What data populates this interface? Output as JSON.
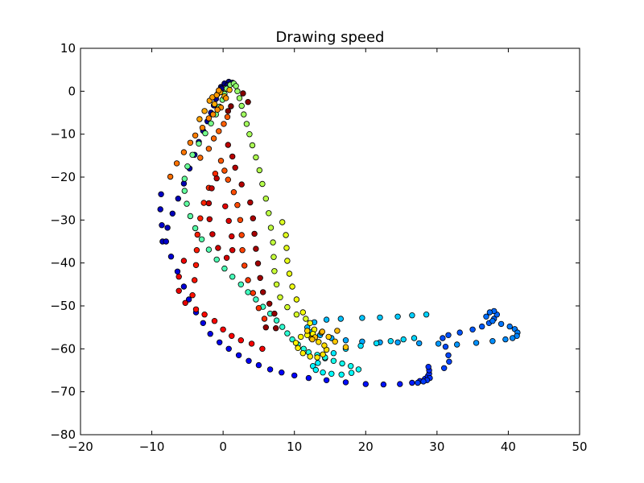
{
  "chart_data": {
    "type": "scatter",
    "title": "Drawing speed",
    "xlabel": "",
    "ylabel": "",
    "xlim": [
      -20,
      50
    ],
    "ylim": [
      -80,
      10
    ],
    "xticks": [
      -20,
      -10,
      0,
      10,
      20,
      30,
      40,
      50
    ],
    "yticks": [
      -80,
      -70,
      -60,
      -50,
      -40,
      -30,
      -20,
      -10,
      0,
      10
    ],
    "xtick_labels": [
      "−20",
      "−10",
      "0",
      "10",
      "20",
      "30",
      "40",
      "50"
    ],
    "ytick_labels": [
      "−80",
      "−70",
      "−60",
      "−50",
      "−40",
      "−30",
      "−20",
      "−10",
      "0",
      "10"
    ],
    "grid": false,
    "colormap": "jet",
    "marker_edge_color": "#000000",
    "color_order": "sequential along drawn stroke (blue → cyan → green → yellow → orange → red → dark red)",
    "points": [
      [
        -0.3,
        1.0
      ],
      [
        0.2,
        1.8
      ],
      [
        0.8,
        2.2
      ],
      [
        1.3,
        2.0
      ],
      [
        0.6,
        1.4
      ],
      [
        -0.2,
        0.6
      ],
      [
        -0.7,
        -0.5
      ],
      [
        -1.0,
        -1.8
      ],
      [
        -1.3,
        -3.3
      ],
      [
        -1.7,
        -5.0
      ],
      [
        -2.2,
        -7.0
      ],
      [
        -2.8,
        -9.2
      ],
      [
        -3.4,
        -11.8
      ],
      [
        -4.0,
        -14.8
      ],
      [
        -4.7,
        -18.0
      ],
      [
        -5.5,
        -21.5
      ],
      [
        -6.3,
        -25.0
      ],
      [
        -7.1,
        -28.5
      ],
      [
        -7.8,
        -31.8
      ],
      [
        -8.5,
        -35.0
      ],
      [
        -8.7,
        -24.0
      ],
      [
        -8.8,
        -27.5
      ],
      [
        -8.6,
        -31.2
      ],
      [
        -8.0,
        -35.0
      ],
      [
        -7.3,
        -38.5
      ],
      [
        -6.4,
        -42.0
      ],
      [
        -5.5,
        -45.5
      ],
      [
        -4.8,
        -48.5
      ],
      [
        -3.8,
        -51.5
      ],
      [
        -2.8,
        -54.0
      ],
      [
        -1.8,
        -56.5
      ],
      [
        -0.5,
        -58.5
      ],
      [
        0.8,
        -60.0
      ],
      [
        2.2,
        -61.5
      ],
      [
        3.6,
        -62.8
      ],
      [
        5.0,
        -63.8
      ],
      [
        6.6,
        -64.8
      ],
      [
        8.2,
        -65.5
      ],
      [
        10.0,
        -66.2
      ],
      [
        12.0,
        -66.8
      ],
      [
        14.5,
        -67.3
      ],
      [
        17.2,
        -67.8
      ],
      [
        20.0,
        -68.2
      ],
      [
        22.5,
        -68.3
      ],
      [
        24.8,
        -68.2
      ],
      [
        26.5,
        -67.9
      ],
      [
        27.6,
        -67.5
      ],
      [
        28.3,
        -67.0
      ],
      [
        28.7,
        -66.4
      ],
      [
        28.9,
        -65.8
      ],
      [
        28.9,
        -65.0
      ],
      [
        28.8,
        -64.2
      ],
      [
        29.0,
        -66.8
      ],
      [
        28.6,
        -67.3
      ],
      [
        28.1,
        -67.6
      ],
      [
        27.3,
        -67.9
      ],
      [
        31.0,
        -64.5
      ],
      [
        31.7,
        -63.0
      ],
      [
        31.6,
        -61.5
      ],
      [
        31.2,
        -59.5
      ],
      [
        30.8,
        -57.5
      ],
      [
        31.6,
        -56.8
      ],
      [
        33.2,
        -56.2
      ],
      [
        35.0,
        -55.5
      ],
      [
        36.3,
        -54.8
      ],
      [
        37.3,
        -54.0
      ],
      [
        38.0,
        -53.0
      ],
      [
        38.4,
        -52.0
      ],
      [
        38.0,
        -51.2
      ],
      [
        37.4,
        -51.5
      ],
      [
        36.9,
        -52.5
      ],
      [
        37.8,
        -53.5
      ],
      [
        39.0,
        -54.2
      ],
      [
        40.2,
        -54.8
      ],
      [
        40.9,
        -55.4
      ],
      [
        41.3,
        -56.2
      ],
      [
        41.2,
        -57.0
      ],
      [
        40.6,
        -57.5
      ],
      [
        39.6,
        -57.8
      ],
      [
        37.8,
        -58.2
      ],
      [
        35.5,
        -58.6
      ],
      [
        32.8,
        -59.0
      ],
      [
        30.2,
        -58.8
      ],
      [
        27.5,
        -58.7
      ],
      [
        24.5,
        -58.5
      ],
      [
        22.0,
        -58.5
      ],
      [
        19.5,
        -58.3
      ],
      [
        17.2,
        -58.0
      ],
      [
        15.2,
        -57.5
      ],
      [
        13.6,
        -56.8
      ],
      [
        12.5,
        -56.0
      ],
      [
        11.8,
        -55.0
      ],
      [
        12.8,
        -53.8
      ],
      [
        14.5,
        -53.2
      ],
      [
        16.5,
        -53.0
      ],
      [
        19.5,
        -52.8
      ],
      [
        22.0,
        -52.7
      ],
      [
        24.5,
        -52.5
      ],
      [
        26.5,
        -52.2
      ],
      [
        28.5,
        -52.0
      ],
      [
        26.8,
        -57.5
      ],
      [
        25.3,
        -57.8
      ],
      [
        23.5,
        -58.2
      ],
      [
        21.5,
        -58.7
      ],
      [
        19.3,
        -59.3
      ],
      [
        17.2,
        -60.0
      ],
      [
        15.5,
        -61.0
      ],
      [
        14.3,
        -62.2
      ],
      [
        13.3,
        -63.3
      ],
      [
        12.6,
        -64.0
      ],
      [
        13.0,
        -64.9
      ],
      [
        14.0,
        -65.5
      ],
      [
        15.2,
        -65.8
      ],
      [
        16.6,
        -66.0
      ],
      [
        18.0,
        -65.6
      ],
      [
        19.0,
        -64.8
      ],
      [
        17.9,
        -64.0
      ],
      [
        16.7,
        -63.4
      ],
      [
        15.5,
        -62.8
      ],
      [
        14.3,
        -62.0
      ],
      [
        13.2,
        -61.4
      ],
      [
        12.0,
        -60.8
      ],
      [
        11.3,
        -60.0
      ],
      [
        10.5,
        -59.0
      ],
      [
        9.7,
        -57.8
      ],
      [
        9.0,
        -56.4
      ],
      [
        8.3,
        -54.9
      ],
      [
        7.5,
        -53.4
      ],
      [
        6.6,
        -51.8
      ],
      [
        5.6,
        -50.2
      ],
      [
        4.6,
        -48.5
      ],
      [
        3.5,
        -46.8
      ],
      [
        2.5,
        -45.0
      ],
      [
        1.3,
        -43.2
      ],
      [
        0.2,
        -41.3
      ],
      [
        -0.9,
        -39.2
      ],
      [
        -2.0,
        -36.9
      ],
      [
        -3.0,
        -34.5
      ],
      [
        -3.9,
        -31.9
      ],
      [
        -4.6,
        -29.1
      ],
      [
        -5.1,
        -26.2
      ],
      [
        -5.4,
        -23.2
      ],
      [
        -5.4,
        -20.4
      ],
      [
        -5.0,
        -17.5
      ],
      [
        -4.3,
        -14.8
      ],
      [
        -3.4,
        -12.2
      ],
      [
        -2.5,
        -9.8
      ],
      [
        -1.7,
        -7.5
      ],
      [
        -1.0,
        -5.4
      ],
      [
        -0.5,
        -3.6
      ],
      [
        -0.1,
        -2.0
      ],
      [
        0.2,
        -0.6
      ],
      [
        0.5,
        0.6
      ],
      [
        1.0,
        1.5
      ],
      [
        1.5,
        1.8
      ],
      [
        1.8,
        1.2
      ],
      [
        2.0,
        0.0
      ],
      [
        2.3,
        -1.6
      ],
      [
        2.6,
        -3.4
      ],
      [
        2.9,
        -5.4
      ],
      [
        3.3,
        -7.6
      ],
      [
        3.7,
        -10.0
      ],
      [
        4.1,
        -12.6
      ],
      [
        4.6,
        -15.4
      ],
      [
        5.1,
        -18.4
      ],
      [
        5.5,
        -21.6
      ],
      [
        6.0,
        -25.0
      ],
      [
        6.4,
        -28.4
      ],
      [
        6.7,
        -31.8
      ],
      [
        7.0,
        -35.2
      ],
      [
        7.1,
        -38.6
      ],
      [
        7.2,
        -41.9
      ],
      [
        7.5,
        -45.0
      ],
      [
        8.0,
        -48.0
      ],
      [
        9.0,
        -50.3
      ],
      [
        10.3,
        -52.0
      ],
      [
        11.6,
        -53.0
      ],
      [
        8.3,
        -30.5
      ],
      [
        8.8,
        -33.5
      ],
      [
        8.9,
        -36.5
      ],
      [
        9.0,
        -39.5
      ],
      [
        9.3,
        -42.5
      ],
      [
        9.7,
        -45.5
      ],
      [
        10.3,
        -48.5
      ],
      [
        11.2,
        -51.5
      ],
      [
        12.2,
        -54.0
      ],
      [
        12.8,
        -55.5
      ],
      [
        12.6,
        -56.5
      ],
      [
        11.8,
        -56.8
      ],
      [
        10.9,
        -57.2
      ],
      [
        10.2,
        -58.6
      ],
      [
        10.5,
        -59.8
      ],
      [
        11.2,
        -61.0
      ],
      [
        12.2,
        -61.8
      ],
      [
        13.2,
        -62.0
      ],
      [
        14.0,
        -61.3
      ],
      [
        14.5,
        -60.2
      ],
      [
        14.2,
        -59.2
      ],
      [
        13.4,
        -58.4
      ],
      [
        12.4,
        -57.6
      ],
      [
        11.8,
        -55.8
      ],
      [
        13.8,
        -56.2
      ],
      [
        14.8,
        -57.2
      ],
      [
        15.7,
        -58.3
      ],
      [
        17.2,
        -59.6
      ],
      [
        12.9,
        -57.3
      ],
      [
        12.5,
        -57.8
      ],
      [
        16.0,
        -55.8
      ],
      [
        13.9,
        -56.0
      ],
      [
        0.2,
        -1.2
      ],
      [
        -0.4,
        -0.2
      ],
      [
        0.9,
        0.3
      ],
      [
        -1.2,
        -3.0
      ],
      [
        -2.6,
        -4.6
      ],
      [
        -3.3,
        -6.5
      ],
      [
        -1.9,
        -2.2
      ],
      [
        -1.5,
        -1.4
      ],
      [
        -0.9,
        -0.9
      ],
      [
        -0.6,
        0.2
      ],
      [
        0.4,
        -1.6
      ],
      [
        -0.3,
        -3.8
      ],
      [
        -0.8,
        -4.3
      ],
      [
        -1.4,
        -5.4
      ],
      [
        -2.0,
        -6.3
      ],
      [
        -2.9,
        -8.5
      ],
      [
        -3.9,
        -10.3
      ],
      [
        -4.6,
        -12.0
      ],
      [
        -5.5,
        -14.2
      ],
      [
        -6.5,
        -16.8
      ],
      [
        -7.4,
        -19.9
      ],
      [
        -3.2,
        -15.5
      ],
      [
        -2.0,
        -13.4
      ],
      [
        -1.3,
        -11.0
      ],
      [
        -0.6,
        -9.3
      ],
      [
        0.1,
        -7.6
      ],
      [
        0.6,
        -6.0
      ],
      [
        -0.3,
        -16.2
      ],
      [
        0.2,
        -18.5
      ],
      [
        0.7,
        -20.6
      ],
      [
        1.5,
        -23.5
      ],
      [
        2.0,
        -26.5
      ],
      [
        2.4,
        -30.0
      ],
      [
        2.6,
        -33.5
      ],
      [
        2.7,
        -37.0
      ],
      [
        3.0,
        -40.6
      ],
      [
        3.5,
        -44.0
      ],
      [
        4.2,
        -47.0
      ],
      [
        5.0,
        -50.5
      ],
      [
        5.8,
        -53.0
      ],
      [
        -1.1,
        -19.2
      ],
      [
        -2.0,
        -22.5
      ],
      [
        -2.7,
        -26.0
      ],
      [
        -3.2,
        -29.6
      ],
      [
        -3.6,
        -33.4
      ],
      [
        -3.7,
        -37.0
      ],
      [
        -3.8,
        -40.5
      ],
      [
        -4.0,
        -44.0
      ],
      [
        -4.3,
        -47.5
      ],
      [
        -3.8,
        -50.8
      ],
      [
        -2.6,
        -52.0
      ],
      [
        -1.2,
        -53.5
      ],
      [
        0.0,
        -55.5
      ],
      [
        1.2,
        -57.0
      ],
      [
        2.5,
        -58.0
      ],
      [
        4.0,
        -58.8
      ],
      [
        5.5,
        -60.0
      ],
      [
        -5.5,
        -39.5
      ],
      [
        -6.2,
        -43.2
      ],
      [
        -6.2,
        -46.5
      ],
      [
        -5.3,
        -49.3
      ],
      [
        0.3,
        -26.8
      ],
      [
        0.8,
        -30.2
      ],
      [
        1.2,
        -33.8
      ],
      [
        1.3,
        -37.0
      ],
      [
        0.5,
        -38.8
      ],
      [
        -0.7,
        -36.5
      ],
      [
        -1.5,
        -33.3
      ],
      [
        -1.9,
        -29.8
      ],
      [
        -2.0,
        -26.1
      ],
      [
        -1.6,
        -22.6
      ],
      [
        -0.9,
        -20.3
      ],
      [
        0.7,
        -12.5
      ],
      [
        1.3,
        -15.2
      ],
      [
        1.7,
        -17.8
      ],
      [
        2.6,
        -21.7
      ],
      [
        3.8,
        -25.9
      ],
      [
        4.2,
        -29.6
      ],
      [
        4.4,
        -33.2
      ],
      [
        4.6,
        -36.7
      ],
      [
        4.9,
        -40.1
      ],
      [
        5.2,
        -43.5
      ],
      [
        5.6,
        -46.8
      ],
      [
        6.5,
        -49.5
      ],
      [
        7.2,
        -51.8
      ],
      [
        6.0,
        -55.0
      ],
      [
        7.4,
        -55.2
      ],
      [
        3.5,
        -2.5
      ],
      [
        2.8,
        -0.5
      ],
      [
        1.1,
        -3.5
      ],
      [
        0.7,
        -4.6
      ]
    ]
  }
}
